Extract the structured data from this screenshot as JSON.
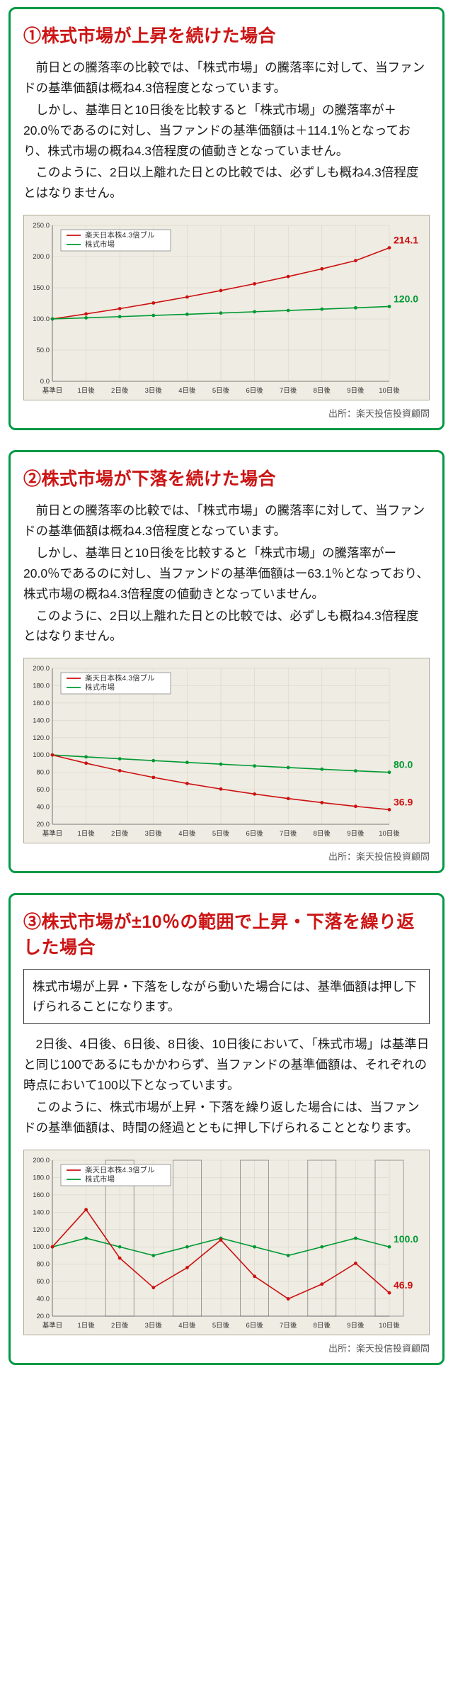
{
  "panels": [
    {
      "id": "p1",
      "heading": "①株式市場が上昇を続けた場合",
      "paragraphs": [
        "前日との騰落率の比較では、「株式市場」の騰落率に対して、当ファンドの基準価額は概ね4.3倍程度となっています。",
        "しかし、基準日と10日後を比較すると「株式市場」の騰落率が＋20.0％であるのに対し、当ファンドの基準価額は＋114.1％となっており、株式市場の概ね4.3倍程度の値動きとなっていません。",
        "このように、2日以上離れた日との比較では、必ずしも概ね4.3倍程度とはなりません。"
      ],
      "chart": {
        "type": "line",
        "background": "#efece3",
        "legend": {
          "items": [
            {
              "label": "楽天日本株4.3倍ブル",
              "color": "#cc1111"
            },
            {
              "label": "株式市場",
              "color": "#009933"
            }
          ]
        },
        "ymin": 0,
        "ymax": 250,
        "ytick_step": 50,
        "xlabels": [
          "基準日",
          "1日後",
          "2日後",
          "3日後",
          "4日後",
          "5日後",
          "6日後",
          "7日後",
          "8日後",
          "9日後",
          "10日後"
        ],
        "series": [
          {
            "name": "fund",
            "color": "#cc1111",
            "marker": "circle",
            "values": [
              100.0,
              108.0,
              116.5,
              125.6,
              135.2,
              145.5,
              156.4,
              168.0,
              180.3,
              193.5,
              214.1
            ],
            "end_label": "214.1",
            "end_label_color": "#cc1111"
          },
          {
            "name": "market",
            "color": "#009933",
            "marker": "circle",
            "values": [
              100.0,
              101.8,
              103.7,
              105.6,
              107.5,
              109.5,
              111.5,
              113.6,
              115.7,
              117.8,
              120.0
            ],
            "end_label": "120.0",
            "end_label_color": "#009933"
          }
        ]
      }
    },
    {
      "id": "p2",
      "heading": "②株式市場が下落を続けた場合",
      "paragraphs": [
        "前日との騰落率の比較では、「株式市場」の騰落率に対して、当ファンドの基準価額は概ね4.3倍程度となっています。",
        "しかし、基準日と10日後を比較すると「株式市場」の騰落率がー20.0％であるのに対し、当ファンドの基準価額はー63.1％となっており、株式市場の概ね4.3倍程度の値動きとなっていません。",
        "このように、2日以上離れた日との比較では、必ずしも概ね4.3倍程度とはなりません。"
      ],
      "chart": {
        "type": "line",
        "background": "#efece3",
        "legend": {
          "items": [
            {
              "label": "楽天日本株4.3倍ブル",
              "color": "#cc1111"
            },
            {
              "label": "株式市場",
              "color": "#009933"
            }
          ]
        },
        "ymin": 20,
        "ymax": 200,
        "ytick_step": 20,
        "xlabels": [
          "基準日",
          "1日後",
          "2日後",
          "3日後",
          "4日後",
          "5日後",
          "6日後",
          "7日後",
          "8日後",
          "9日後",
          "10日後"
        ],
        "series": [
          {
            "name": "market",
            "color": "#009933",
            "marker": "circle",
            "values": [
              100.0,
              97.8,
              95.6,
              93.5,
              91.4,
              89.4,
              87.4,
              85.5,
              83.6,
              81.7,
              80.0
            ],
            "end_label": "80.0",
            "end_label_color": "#009933"
          },
          {
            "name": "fund",
            "color": "#cc1111",
            "marker": "circle",
            "values": [
              100.0,
              90.5,
              81.9,
              74.1,
              67.1,
              60.7,
              54.9,
              49.7,
              45.0,
              40.7,
              36.9
            ],
            "end_label": "36.9",
            "end_label_color": "#cc1111"
          }
        ]
      }
    },
    {
      "id": "p3",
      "heading": "③株式市場が±10％の範囲で上昇・下落を繰り返した場合",
      "note": "株式市場が上昇・下落をしながら動いた場合には、基準価額は押し下げられることになります。",
      "paragraphs": [
        "2日後、4日後、6日後、8日後、10日後において、「株式市場」は基準日と同じ100であるにもかかわらず、当ファンドの基準価額は、それぞれの時点において100以下となっています。",
        "このように、株式市場が上昇・下落を繰り返した場合には、当ファンドの基準価額は、時間の経過とともに押し下げられることとなります。"
      ],
      "chart": {
        "type": "line",
        "background": "#efece3",
        "legend": {
          "items": [
            {
              "label": "楽天日本株4.3倍ブル",
              "color": "#cc1111"
            },
            {
              "label": "株式市場",
              "color": "#009933"
            }
          ]
        },
        "ymin": 20,
        "ymax": 200,
        "ytick_step": 20,
        "xlabels": [
          "基準日",
          "1日後",
          "2日後",
          "3日後",
          "4日後",
          "5日後",
          "6日後",
          "7日後",
          "8日後",
          "9日後",
          "10日後"
        ],
        "highlight_x": [
          2,
          4,
          6,
          8,
          10
        ],
        "series": [
          {
            "name": "market",
            "color": "#009933",
            "marker": "circle",
            "values": [
              100,
              110,
              100,
              90,
              100,
              110,
              100,
              90,
              100,
              110,
              100
            ],
            "end_label": "100.0",
            "end_label_color": "#009933"
          },
          {
            "name": "fund",
            "color": "#cc1111",
            "marker": "circle",
            "values": [
              100,
              143,
              87,
              53,
              76,
              108,
              66,
              40,
              57,
              81,
              46.9
            ],
            "end_label": "46.9",
            "end_label_color": "#cc1111"
          }
        ]
      }
    }
  ],
  "source_label": "出所：楽天投信投資顧問"
}
